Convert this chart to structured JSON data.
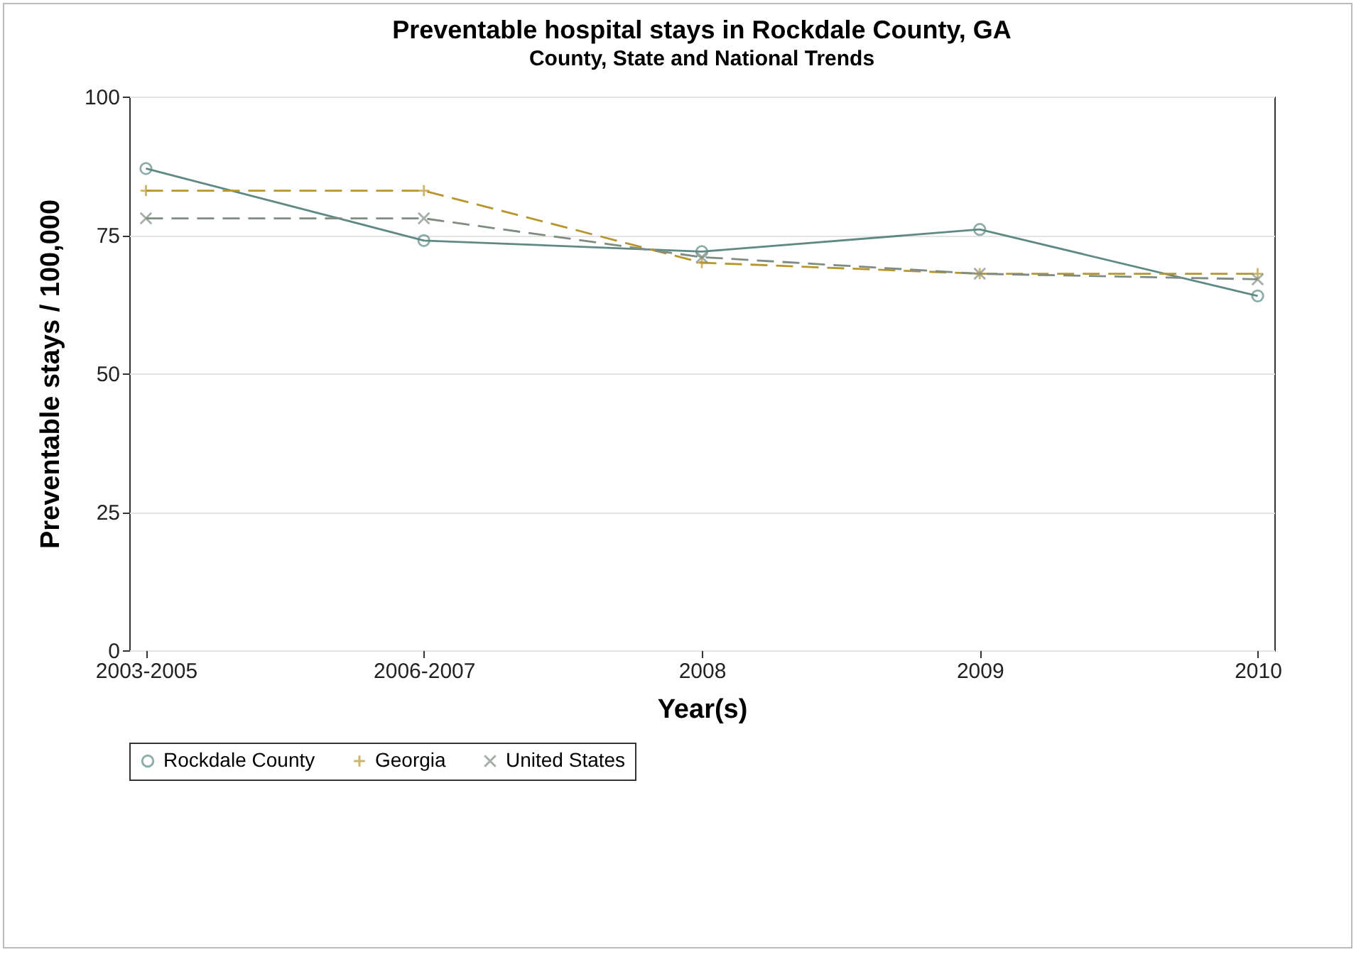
{
  "chart_data": {
    "type": "line",
    "title": "Preventable hospital stays in Rockdale County, GA",
    "subtitle": "County, State and National Trends",
    "xlabel": "Year(s)",
    "ylabel": "Preventable stays / 100,000",
    "categories": [
      "2003-2005",
      "2006-2007",
      "2008",
      "2009",
      "2010"
    ],
    "series": [
      {
        "name": "Rockdale County",
        "color": "#5f8a84",
        "values": [
          87,
          74,
          72,
          76,
          64
        ],
        "marker": "circle",
        "line_style": "solid"
      },
      {
        "name": "Georgia",
        "color": "#b8962e",
        "values": [
          83,
          83,
          70,
          68,
          68
        ],
        "marker": "cross",
        "line_style": "dashed"
      },
      {
        "name": "United States",
        "color": "#7f8c82",
        "values": [
          78,
          78,
          71,
          68,
          67
        ],
        "marker": "x",
        "line_style": "dashed"
      }
    ],
    "ylim": [
      0,
      100
    ],
    "yticks": [
      0,
      25,
      50,
      75,
      100
    ],
    "grid": "y",
    "legend": "bottom"
  }
}
